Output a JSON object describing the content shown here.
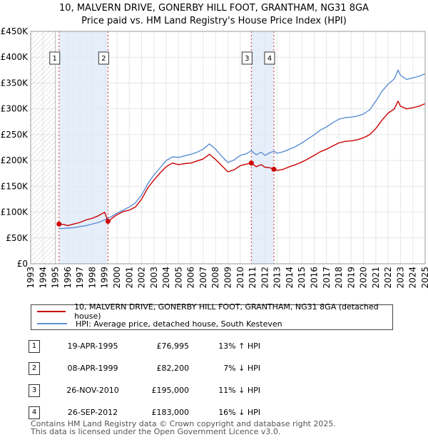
{
  "header": {
    "title_line1": "10, MALVERN DRIVE, GONERBY HILL FOOT, GRANTHAM, NG31 8GA",
    "title_line2": "Price paid vs. HM Land Registry's House Price Index (HPI)"
  },
  "colors": {
    "price_line": "#cc0000",
    "hpi_line": "#5b8fd6",
    "marker_fill": "#cc0000",
    "band_fill": "#dce8f7",
    "hatch": "#c8c8c8"
  },
  "chart_data": {
    "type": "line",
    "title": "Price paid vs. HM Land Registry's House Price Index (HPI)",
    "xlabel": "",
    "ylabel": "",
    "xlim": [
      1993,
      2025
    ],
    "ylim": [
      0,
      450000
    ],
    "y_ticks": [
      {
        "value": 0,
        "label": "£0"
      },
      {
        "value": 50000,
        "label": "£50K"
      },
      {
        "value": 100000,
        "label": "£100K"
      },
      {
        "value": 150000,
        "label": "£150K"
      },
      {
        "value": 200000,
        "label": "£200K"
      },
      {
        "value": 250000,
        "label": "£250K"
      },
      {
        "value": 300000,
        "label": "£300K"
      },
      {
        "value": 350000,
        "label": "£350K"
      },
      {
        "value": 400000,
        "label": "£400K"
      },
      {
        "value": 450000,
        "label": "£450K"
      }
    ],
    "x_ticks": [
      "1993",
      "1994",
      "1995",
      "1996",
      "1997",
      "1998",
      "1999",
      "2000",
      "2001",
      "2002",
      "2003",
      "2004",
      "2005",
      "2006",
      "2007",
      "2008",
      "2009",
      "2010",
      "2011",
      "2012",
      "2013",
      "2014",
      "2015",
      "2016",
      "2017",
      "2018",
      "2019",
      "2020",
      "2021",
      "2022",
      "2023",
      "2024",
      "2025"
    ],
    "hatched_before": 1995.0,
    "bands": [
      {
        "from": 1995.3,
        "to": 1999.27
      },
      {
        "from": 2010.9,
        "to": 2012.73
      }
    ],
    "series": [
      {
        "name": "10, MALVERN DRIVE, GONERBY HILL FOOT, GRANTHAM, NG31 8GA (detached house)",
        "x": [
          1995.3,
          1995.7,
          1996,
          1996.5,
          1997,
          1997.5,
          1998,
          1998.5,
          1999,
          1999.27,
          1999.6,
          2000,
          2000.5,
          2001,
          2001.5,
          2002,
          2002.5,
          2003,
          2003.5,
          2004,
          2004.5,
          2005,
          2005.5,
          2006,
          2006.5,
          2007,
          2007.5,
          2008,
          2008.5,
          2009,
          2009.5,
          2010,
          2010.5,
          2010.9,
          2011.3,
          2011.7,
          2012,
          2012.4,
          2012.73,
          2013,
          2013.5,
          2014,
          2014.5,
          2015,
          2015.5,
          2016,
          2016.5,
          2017,
          2017.5,
          2018,
          2018.5,
          2019,
          2019.5,
          2020,
          2020.5,
          2021,
          2021.5,
          2022,
          2022.5,
          2022.8,
          2023,
          2023.5,
          2024,
          2024.5,
          2025
        ],
        "values": [
          76995,
          76000,
          74000,
          77000,
          80000,
          85000,
          88000,
          93000,
          100000,
          82200,
          88000,
          95000,
          101000,
          104000,
          110000,
          125000,
          147000,
          162000,
          176000,
          188000,
          195000,
          192000,
          194000,
          195000,
          199000,
          203000,
          212000,
          202000,
          190000,
          178000,
          182000,
          190000,
          193000,
          195000,
          188000,
          192000,
          187000,
          186000,
          183000,
          181000,
          183000,
          188000,
          192000,
          197000,
          203000,
          210000,
          217000,
          222000,
          228000,
          234000,
          237000,
          238000,
          240000,
          244000,
          250000,
          262000,
          278000,
          292000,
          300000,
          315000,
          305000,
          300000,
          302000,
          305000,
          310000
        ]
      },
      {
        "name": "HPI: Average price, detached house, South Kesteven",
        "x": [
          1995.3,
          1995.7,
          1996,
          1996.5,
          1997,
          1997.5,
          1998,
          1998.5,
          1999,
          1999.27,
          1999.6,
          2000,
          2000.5,
          2001,
          2001.5,
          2002,
          2002.5,
          2003,
          2003.5,
          2004,
          2004.5,
          2005,
          2005.5,
          2006,
          2006.5,
          2007,
          2007.5,
          2008,
          2008.5,
          2009,
          2009.5,
          2010,
          2010.5,
          2010.9,
          2011.3,
          2011.7,
          2012,
          2012.4,
          2012.73,
          2013,
          2013.5,
          2014,
          2014.5,
          2015,
          2015.5,
          2016,
          2016.5,
          2017,
          2017.5,
          2018,
          2018.5,
          2019,
          2019.5,
          2020,
          2020.5,
          2021,
          2021.5,
          2022,
          2022.5,
          2022.8,
          2023,
          2023.5,
          2024,
          2024.5,
          2025
        ],
        "values": [
          68000,
          68500,
          69000,
          70000,
          72000,
          74000,
          77000,
          80000,
          85000,
          88000,
          92000,
          98000,
          104000,
          110000,
          118000,
          133000,
          155000,
          172000,
          186000,
          200000,
          207000,
          206000,
          209000,
          212000,
          216000,
          222000,
          232000,
          222000,
          208000,
          196000,
          201000,
          210000,
          213000,
          219000,
          211000,
          216000,
          210000,
          215000,
          218000,
          214000,
          217000,
          222000,
          227000,
          234000,
          242000,
          250000,
          259000,
          265000,
          273000,
          280000,
          283000,
          284000,
          286000,
          290000,
          298000,
          315000,
          334000,
          348000,
          358000,
          375000,
          365000,
          357000,
          360000,
          363000,
          368000
        ]
      }
    ],
    "transactions": [
      {
        "num": "1",
        "x": 1995.3,
        "y": 76995
      },
      {
        "num": "2",
        "x": 1999.27,
        "y": 82200
      },
      {
        "num": "3",
        "x": 2010.9,
        "y": 195000
      },
      {
        "num": "4",
        "x": 2012.73,
        "y": 183000
      }
    ]
  },
  "legend": {
    "price_label": "10, MALVERN DRIVE, GONERBY HILL FOOT, GRANTHAM, NG31 8GA (detached house)",
    "hpi_label": "HPI: Average price, detached house, South Kesteven"
  },
  "transactions_table": [
    {
      "num": "1",
      "date": "19-APR-1995",
      "price": "£76,995",
      "hpi": "13% ↑ HPI"
    },
    {
      "num": "2",
      "date": "08-APR-1999",
      "price": "£82,200",
      "hpi": "7% ↓ HPI"
    },
    {
      "num": "3",
      "date": "26-NOV-2010",
      "price": "£195,000",
      "hpi": "11% ↓ HPI"
    },
    {
      "num": "4",
      "date": "26-SEP-2012",
      "price": "£183,000",
      "hpi": "16% ↓ HPI"
    }
  ],
  "footer": {
    "line1": "Contains HM Land Registry data © Crown copyright and database right 2025.",
    "line2": "This data is licensed under the Open Government Licence v3.0."
  }
}
